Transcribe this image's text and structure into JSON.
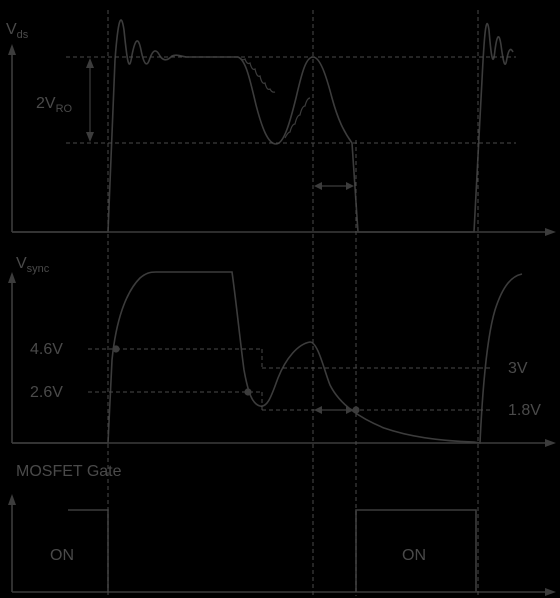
{
  "panels": {
    "vds": {
      "label_main": "V",
      "label_sub": "ds",
      "amplitude_main": "2V",
      "amplitude_sub": "RO"
    },
    "vsync": {
      "label_main": "V",
      "label_sub": "sync",
      "level_high": "4.6V",
      "level_low": "2.6V",
      "threshold_high": "3V",
      "threshold_low": "1.8V"
    },
    "gate": {
      "label": "MOSFET Gate",
      "on_label_1": "ON",
      "on_label_2": "ON"
    }
  },
  "colors": {
    "background": "#000000",
    "trace": "#3c3c3c",
    "guide": "#4a4a4a",
    "text": "#4a4a4a"
  }
}
